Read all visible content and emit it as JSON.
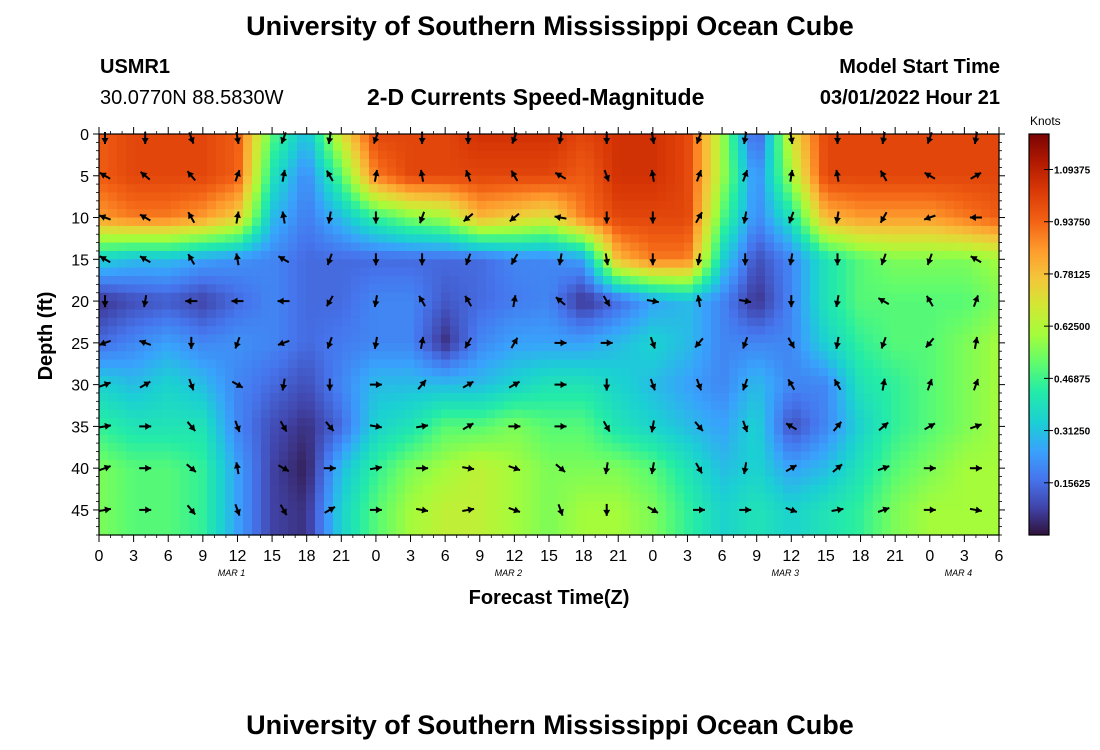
{
  "header": {
    "title": "University of Southern Mississippi Ocean Cube",
    "station": "USMR1",
    "coords": "30.0770N  88.5830W",
    "subtitle": "2-D Currents Speed-Magnitude",
    "model_start_label": "Model Start Time",
    "model_start_value": "03/01/2022 Hour 21",
    "repeat_title": "University of Southern Mississippi Ocean Cube"
  },
  "chart_data": {
    "type": "heatmap",
    "title": "2-D Currents Speed-Magnitude",
    "xlabel": "Forecast Time(Z)",
    "ylabel": "Depth (ft)",
    "x_tick_labels": [
      "0",
      "3",
      "6",
      "9",
      "12",
      "15",
      "18",
      "21",
      "0",
      "3",
      "6",
      "9",
      "12",
      "15",
      "18",
      "21",
      "0",
      "3",
      "6",
      "9",
      "12",
      "15",
      "18",
      "21",
      "0",
      "3",
      "6"
    ],
    "date_labels": [
      {
        "label": "MAR 1",
        "hour": 12
      },
      {
        "label": "MAR 2",
        "hour": 36
      },
      {
        "label": "MAR 3",
        "hour": 60
      },
      {
        "label": "MAR 4",
        "hour": 75
      }
    ],
    "xlim_hours": [
      0,
      78
    ],
    "y_ticks": [
      0,
      5,
      10,
      15,
      20,
      25,
      30,
      35,
      40,
      45
    ],
    "ylim_ft": [
      0,
      48
    ],
    "colorbar": {
      "unit": "Knots",
      "range": [
        0,
        1.2
      ],
      "tick_labels": [
        "1.09375",
        "0.93750",
        "0.78125",
        "0.62500",
        "0.46875",
        "0.31250",
        "0.15625"
      ],
      "tick_values": [
        1.09375,
        0.9375,
        0.78125,
        0.625,
        0.46875,
        0.3125,
        0.15625
      ]
    },
    "speed_depths_ft": [
      0,
      5,
      10,
      15,
      20,
      25,
      30,
      35,
      40,
      45
    ],
    "speed_hours": [
      0,
      3,
      6,
      9,
      12,
      15,
      18,
      21,
      24,
      27,
      30,
      33,
      36,
      39,
      42,
      45,
      48,
      51,
      54,
      57,
      60,
      63,
      66,
      69,
      72,
      75,
      78
    ],
    "speed_knots": [
      [
        0.95,
        1.0,
        1.0,
        1.0,
        0.95,
        0.5,
        0.3,
        0.7,
        1.0,
        1.0,
        1.0,
        1.05,
        1.05,
        1.05,
        1.0,
        1.05,
        1.05,
        1.0,
        0.6,
        0.1,
        0.7,
        1.0,
        1.0,
        1.0,
        1.0,
        1.0,
        1.0
      ],
      [
        0.95,
        1.0,
        1.0,
        1.0,
        0.95,
        0.4,
        0.2,
        0.5,
        0.9,
        1.0,
        1.0,
        1.0,
        1.0,
        1.0,
        0.95,
        1.05,
        1.05,
        1.0,
        0.6,
        0.2,
        0.6,
        1.0,
        1.0,
        1.0,
        1.0,
        1.0,
        1.0
      ],
      [
        0.85,
        0.9,
        0.9,
        0.85,
        0.75,
        0.3,
        0.18,
        0.3,
        0.45,
        0.55,
        0.6,
        0.8,
        0.75,
        0.7,
        0.9,
        1.0,
        1.0,
        1.0,
        0.5,
        0.2,
        0.4,
        0.8,
        0.85,
        0.85,
        0.85,
        0.9,
        0.95
      ],
      [
        0.35,
        0.3,
        0.3,
        0.25,
        0.22,
        0.2,
        0.15,
        0.15,
        0.15,
        0.15,
        0.15,
        0.15,
        0.2,
        0.2,
        0.25,
        0.8,
        0.9,
        0.9,
        0.35,
        0.1,
        0.2,
        0.4,
        0.5,
        0.55,
        0.55,
        0.55,
        0.6
      ],
      [
        0.05,
        0.1,
        0.12,
        0.08,
        0.15,
        0.2,
        0.15,
        0.15,
        0.2,
        0.2,
        0.12,
        0.15,
        0.18,
        0.2,
        0.05,
        0.15,
        0.25,
        0.3,
        0.2,
        0.05,
        0.2,
        0.4,
        0.5,
        0.5,
        0.5,
        0.5,
        0.55
      ],
      [
        0.15,
        0.2,
        0.25,
        0.2,
        0.22,
        0.2,
        0.15,
        0.18,
        0.2,
        0.2,
        0.05,
        0.2,
        0.25,
        0.25,
        0.25,
        0.3,
        0.35,
        0.3,
        0.2,
        0.2,
        0.2,
        0.35,
        0.45,
        0.5,
        0.5,
        0.55,
        0.6
      ],
      [
        0.35,
        0.3,
        0.35,
        0.3,
        0.2,
        0.15,
        0.1,
        0.2,
        0.3,
        0.3,
        0.3,
        0.3,
        0.35,
        0.4,
        0.4,
        0.35,
        0.3,
        0.25,
        0.2,
        0.3,
        0.2,
        0.2,
        0.4,
        0.45,
        0.5,
        0.55,
        0.6
      ],
      [
        0.45,
        0.4,
        0.4,
        0.4,
        0.2,
        0.1,
        0.05,
        0.15,
        0.35,
        0.4,
        0.5,
        0.5,
        0.55,
        0.5,
        0.5,
        0.4,
        0.35,
        0.3,
        0.25,
        0.35,
        0.1,
        0.2,
        0.35,
        0.45,
        0.5,
        0.55,
        0.6
      ],
      [
        0.55,
        0.5,
        0.5,
        0.45,
        0.25,
        0.08,
        0.02,
        0.3,
        0.45,
        0.55,
        0.6,
        0.65,
        0.6,
        0.55,
        0.55,
        0.55,
        0.5,
        0.4,
        0.3,
        0.35,
        0.25,
        0.3,
        0.4,
        0.5,
        0.55,
        0.6,
        0.6
      ],
      [
        0.55,
        0.5,
        0.5,
        0.45,
        0.25,
        0.08,
        0.05,
        0.35,
        0.5,
        0.6,
        0.65,
        0.65,
        0.6,
        0.55,
        0.6,
        0.6,
        0.55,
        0.45,
        0.35,
        0.4,
        0.35,
        0.4,
        0.45,
        0.55,
        0.6,
        0.6,
        0.6
      ]
    ],
    "vector_hours": [
      0,
      4,
      8,
      12,
      16,
      20,
      24,
      28,
      32,
      36,
      40,
      44,
      48,
      52,
      56,
      60,
      64,
      68,
      72,
      76
    ],
    "vector_directions_deg": [
      [
        180,
        180,
        160,
        170,
        200,
        190,
        200,
        180,
        180,
        200,
        190,
        180,
        170,
        200,
        190,
        170,
        180,
        190,
        200,
        190
      ],
      [
        300,
        310,
        320,
        20,
        10,
        330,
        10,
        350,
        340,
        330,
        300,
        160,
        350,
        20,
        20,
        10,
        350,
        330,
        300,
        60
      ],
      [
        290,
        300,
        330,
        10,
        350,
        190,
        180,
        200,
        230,
        230,
        280,
        180,
        180,
        30,
        190,
        200,
        190,
        210,
        250,
        270
      ],
      [
        300,
        300,
        330,
        350,
        300,
        200,
        180,
        180,
        200,
        210,
        190,
        170,
        180,
        190,
        180,
        190,
        180,
        200,
        200,
        300
      ],
      [
        180,
        190,
        270,
        270,
        270,
        210,
        190,
        330,
        330,
        10,
        310,
        150,
        100,
        350,
        100,
        180,
        190,
        300,
        330,
        20
      ],
      [
        250,
        290,
        180,
        200,
        250,
        200,
        190,
        10,
        210,
        30,
        90,
        90,
        160,
        220,
        200,
        150,
        190,
        200,
        220,
        10
      ],
      [
        70,
        60,
        160,
        120,
        190,
        180,
        90,
        40,
        60,
        60,
        90,
        180,
        160,
        160,
        200,
        330,
        330,
        10,
        20,
        20
      ],
      [
        80,
        90,
        140,
        160,
        150,
        140,
        100,
        80,
        60,
        90,
        90,
        150,
        190,
        140,
        160,
        300,
        40,
        50,
        60,
        70
      ],
      [
        70,
        90,
        130,
        350,
        120,
        90,
        80,
        90,
        100,
        110,
        130,
        190,
        190,
        150,
        190,
        60,
        50,
        70,
        90,
        90
      ],
      [
        80,
        90,
        140,
        160,
        150,
        60,
        90,
        100,
        80,
        110,
        160,
        180,
        120,
        90,
        90,
        110,
        80,
        70,
        90,
        100
      ]
    ]
  }
}
